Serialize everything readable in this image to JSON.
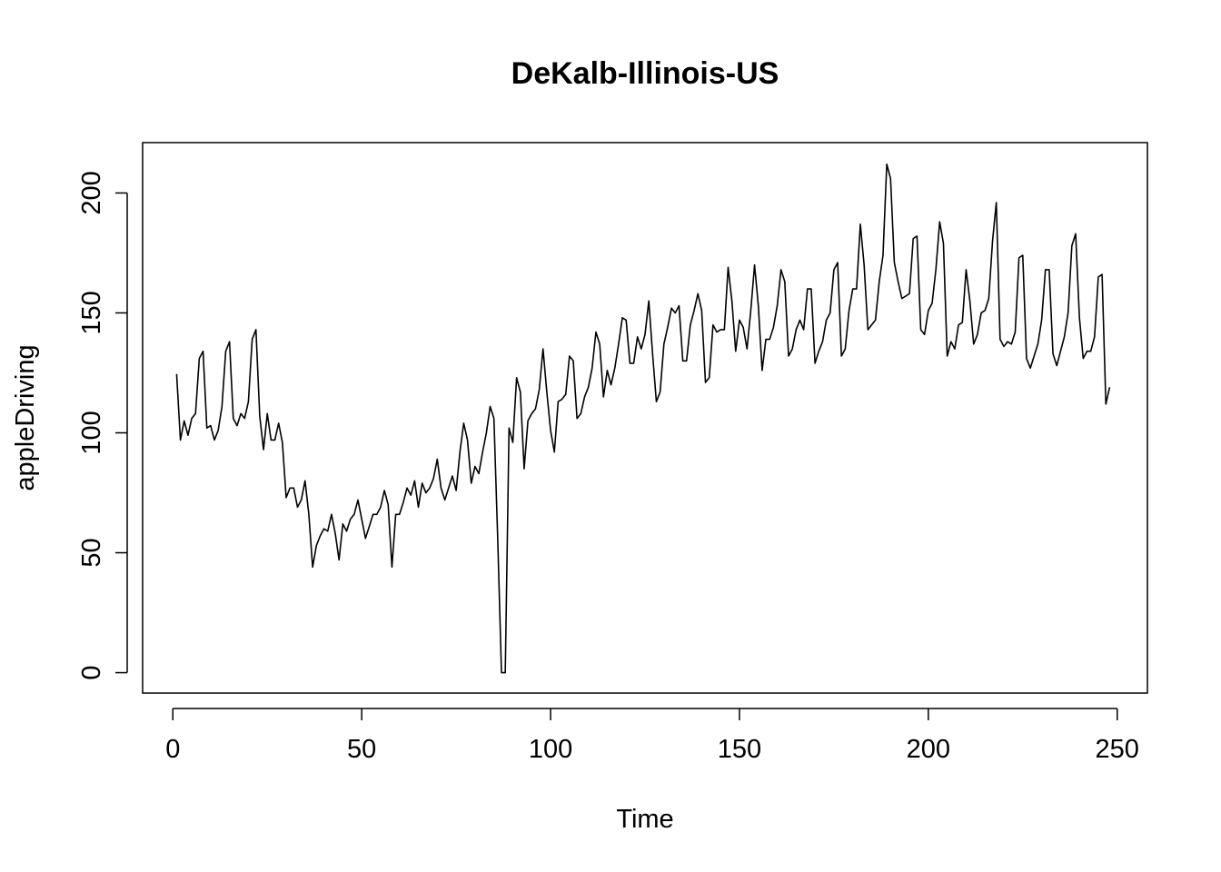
{
  "chart_data": {
    "type": "line",
    "title": "DeKalb-Illinois-US",
    "xlabel": "Time",
    "ylabel": "appleDriving",
    "xlim": [
      -8,
      258
    ],
    "ylim": [
      -8.5,
      221
    ],
    "xticks": [
      0,
      50,
      100,
      150,
      200,
      250
    ],
    "yticks": [
      0,
      50,
      100,
      150,
      200
    ],
    "xtick_labels": [
      "0",
      "50",
      "100",
      "150",
      "200",
      "250"
    ],
    "ytick_labels": [
      "0",
      "50",
      "100",
      "150",
      "200"
    ],
    "grid": false,
    "legend": "none",
    "line_color": "#000000",
    "series": [
      {
        "x_start": 1,
        "x_step": 1,
        "values": [
          124.5,
          97,
          105,
          99,
          106,
          108,
          131,
          134,
          102,
          103,
          97,
          101,
          111,
          134,
          138,
          106,
          103,
          108,
          106,
          113,
          139,
          143,
          107,
          93,
          108,
          97,
          97,
          104,
          96,
          73,
          77,
          77,
          69,
          72,
          80,
          66,
          44,
          53,
          57,
          60,
          59,
          66,
          58,
          47,
          62,
          59,
          64,
          66,
          72,
          64,
          56,
          61,
          66,
          66,
          69,
          76,
          70,
          44,
          66,
          66,
          71,
          77,
          74,
          80,
          69,
          79,
          75,
          77,
          81,
          89,
          77,
          72,
          77,
          82,
          76,
          92,
          104,
          97,
          79,
          86,
          83,
          92,
          100,
          111,
          106,
          56,
          0,
          0,
          102,
          96,
          123,
          117,
          85,
          105,
          108,
          110,
          118,
          135,
          117,
          101,
          92,
          113,
          114,
          116,
          132,
          130,
          106,
          108,
          115,
          119,
          127,
          142,
          137,
          115,
          126,
          120,
          127,
          137,
          148,
          147,
          129,
          129,
          140,
          135,
          141,
          155,
          133,
          113,
          117,
          137,
          144,
          152,
          150,
          153,
          130,
          130,
          145,
          151,
          158,
          151,
          121,
          123,
          145,
          142,
          143,
          143,
          169,
          155,
          134,
          147,
          144,
          135,
          151,
          170,
          153,
          126,
          139,
          139,
          144,
          153,
          168,
          163,
          132,
          135,
          143,
          147,
          143,
          160,
          160,
          129,
          134,
          138,
          147,
          150,
          168,
          171,
          132,
          135,
          151,
          160,
          160,
          187,
          170,
          143,
          145,
          147,
          163,
          174,
          212,
          206,
          171,
          163,
          156,
          157,
          158,
          181,
          182,
          143,
          141,
          151,
          154,
          168,
          188,
          179,
          132,
          138,
          135,
          145,
          146,
          168,
          155,
          137,
          141,
          150,
          151,
          156,
          180,
          196,
          139,
          136,
          138,
          137,
          142,
          173,
          174,
          131,
          127,
          132,
          137,
          147,
          168,
          168,
          133,
          128,
          134,
          140,
          150,
          178,
          183,
          148,
          131,
          134,
          134,
          140,
          165,
          166,
          112,
          119
        ]
      }
    ]
  }
}
